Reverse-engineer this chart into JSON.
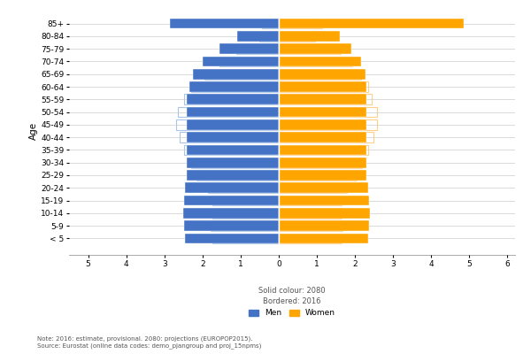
{
  "age_groups": [
    "< 5",
    "5-9",
    "10-14",
    "15-19",
    "20-24",
    "25-29",
    "30-34",
    "35-39",
    "40-44",
    "45-49",
    "50-54",
    "55-59",
    "60-64",
    "65-69",
    "70-74",
    "75-79",
    "80-84",
    "85+"
  ],
  "men_2080": [
    2.45,
    2.48,
    2.5,
    2.48,
    2.45,
    2.42,
    2.42,
    2.42,
    2.42,
    2.42,
    2.42,
    2.42,
    2.35,
    2.25,
    2.0,
    1.55,
    1.1,
    2.85
  ],
  "women_2080": [
    2.35,
    2.38,
    2.4,
    2.38,
    2.35,
    2.3,
    2.3,
    2.3,
    2.3,
    2.3,
    2.3,
    2.3,
    2.3,
    2.28,
    2.15,
    1.9,
    1.6,
    4.85
  ],
  "men_2016": [
    1.75,
    1.78,
    1.75,
    1.75,
    1.85,
    2.15,
    2.3,
    2.48,
    2.6,
    2.68,
    2.65,
    2.48,
    2.3,
    1.95,
    1.55,
    1.12,
    0.52,
    0.45
  ],
  "women_2016": [
    1.65,
    1.68,
    1.65,
    1.65,
    1.78,
    2.05,
    2.18,
    2.35,
    2.48,
    2.58,
    2.58,
    2.45,
    2.35,
    2.15,
    1.92,
    1.62,
    0.95,
    1.15
  ],
  "color_men": "#4472C4",
  "color_women": "#FFA500",
  "color_men_border": "#A8C4E8",
  "color_women_border": "#FFD08A",
  "xlim": [
    -5.5,
    6.2
  ],
  "xticks": [
    -5,
    -4,
    -3,
    -2,
    -1,
    0,
    1,
    2,
    3,
    4,
    5,
    6
  ],
  "xtick_labels": [
    "5",
    "4",
    "3",
    "2",
    "1",
    "0",
    "1",
    "2",
    "3",
    "4",
    "5",
    "6"
  ],
  "ylabel": "Age",
  "xlabel_note": "Solid colour: 2080\nBordered: 2016",
  "legend_men": "Men",
  "legend_women": "Women",
  "note": "Note: 2016: estimate, provisional. 2080: projections (EUROPOP2015).",
  "source": "Source: Eurostat (online data codes: demo_pjangroup and proj_15npms)",
  "bar_height": 0.82,
  "tick_fontsize": 6.5,
  "label_fontsize": 7.5
}
